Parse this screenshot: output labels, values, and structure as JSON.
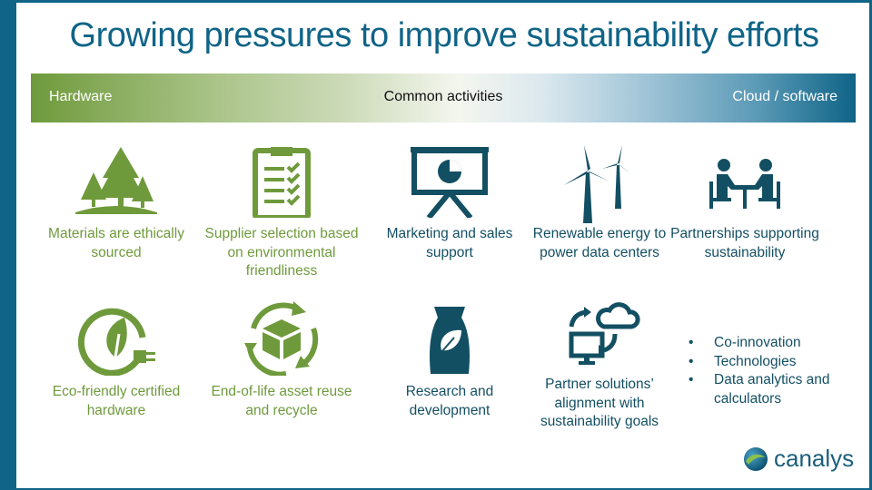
{
  "title": "Growing pressures to improve sustainability efforts",
  "band": {
    "left": "Hardware",
    "center": "Common activities",
    "right": "Cloud / software"
  },
  "colors": {
    "hardware_green": "#6f9a3c",
    "teal": "#0f6487",
    "text_teal": "#134f63"
  },
  "items": [
    {
      "label": "Materials are ethically sourced",
      "icon": "trees-icon"
    },
    {
      "label": "Supplier selection based on environmental friendliness",
      "icon": "clipboard-checklist-icon"
    },
    {
      "label": "Marketing and sales support",
      "icon": "presentation-pie-chart-icon"
    },
    {
      "label": "Renewable energy to power data centers",
      "icon": "wind-turbine-icon"
    },
    {
      "label": "Partnerships supporting sustainability",
      "icon": "meeting-people-icon"
    },
    {
      "label": "Eco-friendly certified hardware",
      "icon": "eco-plug-icon"
    },
    {
      "label": "End-of-life asset reuse and recycle",
      "icon": "recycle-box-icon"
    },
    {
      "label": "Research and development",
      "icon": "seed-bag-icon"
    },
    {
      "label": "Partner solutions’ alignment with sustainability goals",
      "icon": "cloud-computer-sync-icon"
    }
  ],
  "bullets": [
    "Co-innovation",
    "Technologies",
    "Data analytics and calculators"
  ],
  "logo": "canalys"
}
